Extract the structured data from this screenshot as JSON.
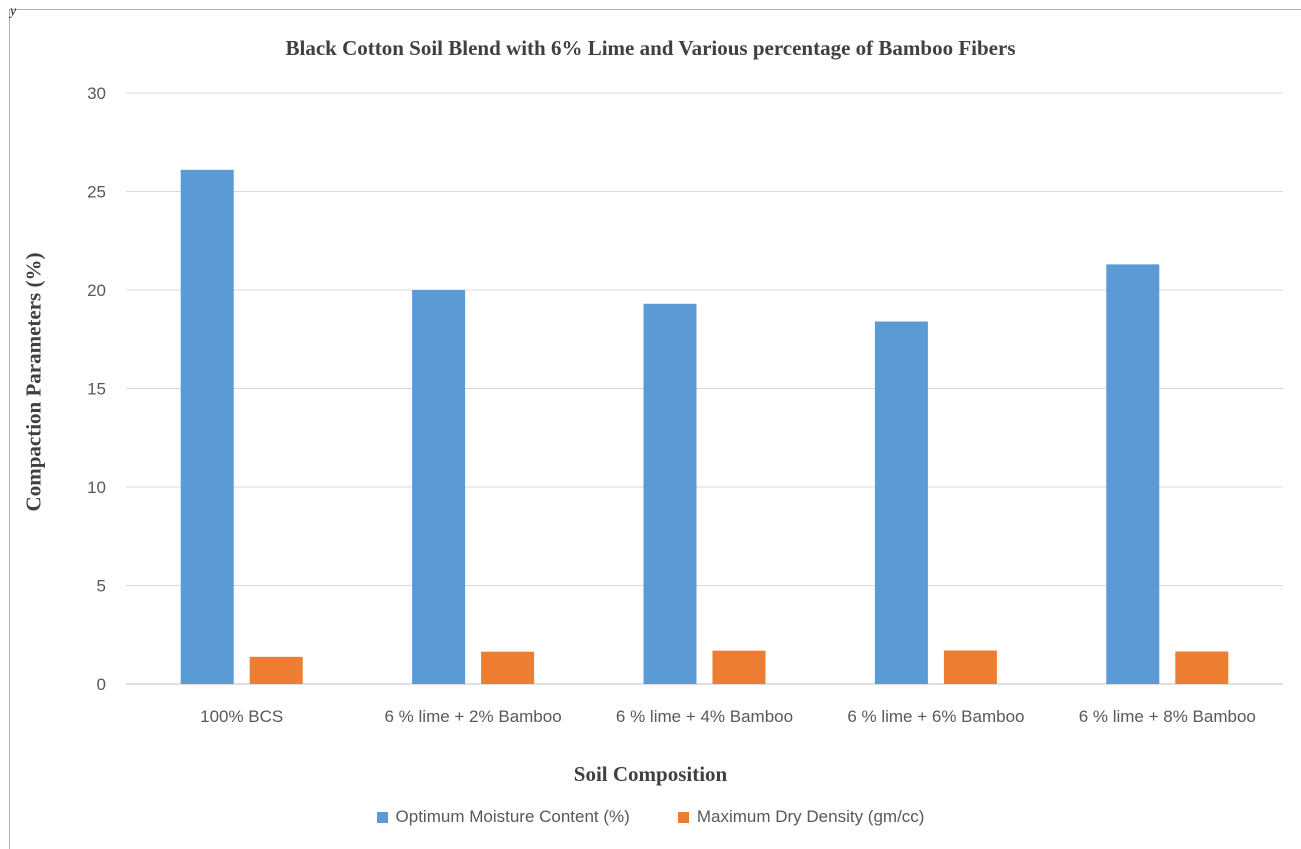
{
  "corner_text": "y",
  "chart_data": {
    "type": "bar",
    "title": "Black Cotton Soil Blend with 6% Lime and Various percentage of Bamboo Fibers",
    "xlabel": "Soil Composition",
    "ylabel": "Compaction Parameters (%)",
    "ylim": [
      0,
      30
    ],
    "yticks": [
      "0",
      "5",
      "10",
      "15",
      "20",
      "25",
      "30"
    ],
    "grid": true,
    "legend_position": "bottom",
    "categories": [
      "100% BCS",
      "6 % lime + 2% Bamboo",
      "6 % lime + 4% Bamboo",
      "6 % lime + 6% Bamboo",
      "6 % lime + 8% Bamboo"
    ],
    "series": [
      {
        "name": "Optimum Moisture Content (%)",
        "color": "#5b9bd5",
        "values": [
          26.1,
          20.0,
          19.3,
          18.4,
          21.3
        ]
      },
      {
        "name": "Maximum Dry Density (gm/cc)",
        "color": "#ed7d31",
        "values": [
          1.38,
          1.64,
          1.69,
          1.7,
          1.65
        ]
      }
    ]
  }
}
